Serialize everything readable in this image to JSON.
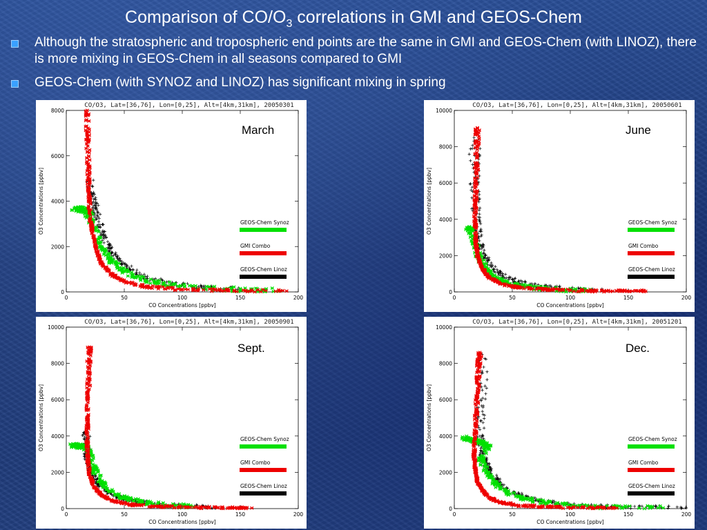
{
  "slide": {
    "title_main": "Comparison of CO/O",
    "title_sub": "3",
    "title_rest": " correlations in GMI and GEOS-Chem",
    "bullets": [
      "Although the stratospheric and tropospheric end points are the same in GMI and GEOS-Chem (with LINOZ), there is more mixing in GEOS-Chem in all seasons compared to GMI",
      "GEOS-Chem (with SYNOZ and LINOZ) has significant mixing in spring"
    ]
  },
  "colors": {
    "synoz": "#00e000",
    "combo": "#ee0000",
    "linoz": "#000000"
  },
  "chart_data": [
    {
      "type": "scatter",
      "plot_title": "CO/O3, Lat=[36,76], Lon=[0,25], Alt=[4km,31km], 20050301",
      "season_label": "March",
      "xlabel": "CO Concentrations [ppbv]",
      "ylabel": "O3 Concentrations [ppbv]",
      "xlim": [
        0,
        200
      ],
      "ylim": [
        0,
        8000
      ],
      "xticks": [
        0,
        50,
        100,
        150,
        200
      ],
      "yticks": [
        0,
        2000,
        4000,
        6000,
        8000
      ],
      "legend": [
        "GEOS-Chem Synoz",
        "GMI Combo",
        "GEOS-Chem Linoz"
      ],
      "series": [
        {
          "name": "GMI Combo",
          "x": [
            18,
            18.5,
            19,
            19.5,
            20,
            22,
            25,
            30,
            38,
            50,
            70,
            100,
            140,
            190
          ],
          "y": [
            8000,
            6800,
            5500,
            4500,
            3600,
            2800,
            2000,
            1300,
            800,
            450,
            220,
            110,
            60,
            40
          ]
        },
        {
          "name": "GEOS-Chem Linoz",
          "x": [
            20,
            22,
            25,
            28,
            32,
            38,
            45,
            55,
            70,
            90,
            120,
            150
          ],
          "y": [
            5000,
            4300,
            3700,
            3100,
            2500,
            1900,
            1400,
            1000,
            600,
            350,
            180,
            90
          ]
        },
        {
          "name": "GEOS-Chem Synoz",
          "x": [
            8,
            12,
            16,
            20,
            24,
            30,
            38,
            48,
            60,
            80,
            110,
            150,
            185
          ],
          "y": [
            3700,
            3650,
            3600,
            3400,
            2800,
            2000,
            1400,
            1000,
            650,
            380,
            200,
            90,
            50
          ]
        }
      ]
    },
    {
      "type": "scatter",
      "plot_title": "CO/O3, Lat=[36,76], Lon=[0,25], Alt=[4km,31km], 20050601",
      "season_label": "June",
      "xlabel": "CO Concentrations [ppbv]",
      "ylabel": "O3 Concentrations [ppbv]",
      "xlim": [
        0,
        200
      ],
      "ylim": [
        0,
        10000
      ],
      "xticks": [
        0,
        50,
        100,
        150,
        200
      ],
      "yticks": [
        0,
        2000,
        4000,
        6000,
        8000,
        10000
      ],
      "legend": [
        "GEOS-Chem Synoz",
        "GMI Combo",
        "GEOS-Chem Linoz"
      ],
      "series": [
        {
          "name": "GMI Combo",
          "x": [
            20,
            19.5,
            19,
            18.5,
            18,
            18.5,
            20,
            24,
            30,
            40,
            55,
            80,
            110,
            140,
            165
          ],
          "y": [
            9000,
            8000,
            6500,
            5000,
            3800,
            2800,
            2000,
            1300,
            800,
            450,
            250,
            130,
            70,
            45,
            35
          ]
        },
        {
          "name": "GEOS-Chem Linoz",
          "x": [
            17,
            17.5,
            18,
            19,
            21,
            25,
            32,
            42,
            55,
            75,
            100,
            130
          ],
          "y": [
            8500,
            7000,
            5500,
            4000,
            3000,
            2100,
            1400,
            900,
            550,
            300,
            150,
            80
          ]
        },
        {
          "name": "GEOS-Chem Synoz",
          "x": [
            12,
            15,
            18,
            22,
            28,
            36,
            48,
            65,
            90,
            120
          ],
          "y": [
            3500,
            3400,
            2600,
            1800,
            1200,
            750,
            450,
            250,
            130,
            70
          ]
        }
      ]
    },
    {
      "type": "scatter",
      "plot_title": "CO/O3, Lat=[36,76], Lon=[0,25], Alt=[4km,31km], 20050901",
      "season_label": "Sept.",
      "xlabel": "CO Concentrations [ppbv]",
      "ylabel": "O3 Concentrations [ppbv]",
      "xlim": [
        0,
        200
      ],
      "ylim": [
        0,
        10000
      ],
      "xticks": [
        0,
        50,
        100,
        150,
        200
      ],
      "yticks": [
        0,
        2000,
        4000,
        6000,
        8000,
        10000
      ],
      "legend": [
        "GEOS-Chem Synoz",
        "GMI Combo",
        "GEOS-Chem Linoz"
      ],
      "series": [
        {
          "name": "GMI Combo",
          "x": [
            20,
            19.5,
            19,
            18.5,
            18,
            18.5,
            20,
            24,
            30,
            40,
            55,
            80,
            110,
            140,
            160
          ],
          "y": [
            8900,
            8000,
            6500,
            5000,
            3800,
            2800,
            1900,
            1200,
            750,
            420,
            230,
            120,
            65,
            40,
            30
          ]
        },
        {
          "name": "GEOS-Chem Linoz",
          "x": [
            17,
            17.5,
            18,
            19,
            22,
            27,
            35,
            46,
            60,
            80,
            105,
            130
          ],
          "y": [
            4200,
            3600,
            3000,
            2500,
            1900,
            1400,
            950,
            600,
            380,
            220,
            120,
            70
          ]
        },
        {
          "name": "GEOS-Chem Synoz",
          "x": [
            5,
            10,
            15,
            20,
            24,
            30,
            38,
            50,
            65,
            85,
            110
          ],
          "y": [
            3500,
            3450,
            3400,
            3000,
            2200,
            1500,
            950,
            600,
            350,
            200,
            100
          ]
        }
      ]
    },
    {
      "type": "scatter",
      "plot_title": "CO/O3, Lat=[36,76], Lon=[0,25], Alt=[4km,31km], 20051201",
      "season_label": "Dec.",
      "xlabel": "CO Concentrations [ppbv]",
      "ylabel": "O3 Concentrations [ppbv]",
      "xlim": [
        0,
        200
      ],
      "ylim": [
        0,
        10000
      ],
      "xticks": [
        0,
        50,
        100,
        150,
        200
      ],
      "yticks": [
        0,
        2000,
        4000,
        6000,
        8000,
        10000
      ],
      "legend": [
        "GEOS-Chem Synoz",
        "GMI Combo",
        "GEOS-Chem Linoz"
      ],
      "series": [
        {
          "name": "GMI Combo",
          "x": [
            22,
            21,
            20,
            19,
            18,
            17,
            18,
            20,
            24,
            30,
            40,
            55,
            80,
            110,
            140
          ],
          "y": [
            8600,
            7800,
            6600,
            5300,
            4100,
            3000,
            2200,
            1500,
            1000,
            600,
            350,
            180,
            90,
            50,
            30
          ]
        },
        {
          "name": "GEOS-Chem Linoz",
          "x": [
            24,
            23,
            22,
            23,
            26,
            30,
            36,
            45,
            58,
            75,
            100,
            130,
            170,
            200
          ],
          "y": [
            8500,
            6000,
            4000,
            3200,
            2600,
            2100,
            1600,
            1100,
            700,
            400,
            200,
            100,
            50,
            30
          ]
        },
        {
          "name": "GEOS-Chem Synoz",
          "x": [
            10,
            15,
            20,
            25,
            30,
            22,
            28,
            35,
            45,
            60,
            80,
            105,
            140,
            180
          ],
          "y": [
            3900,
            3800,
            3700,
            3600,
            3500,
            2800,
            2000,
            1400,
            900,
            550,
            300,
            150,
            70,
            40
          ]
        }
      ]
    }
  ]
}
